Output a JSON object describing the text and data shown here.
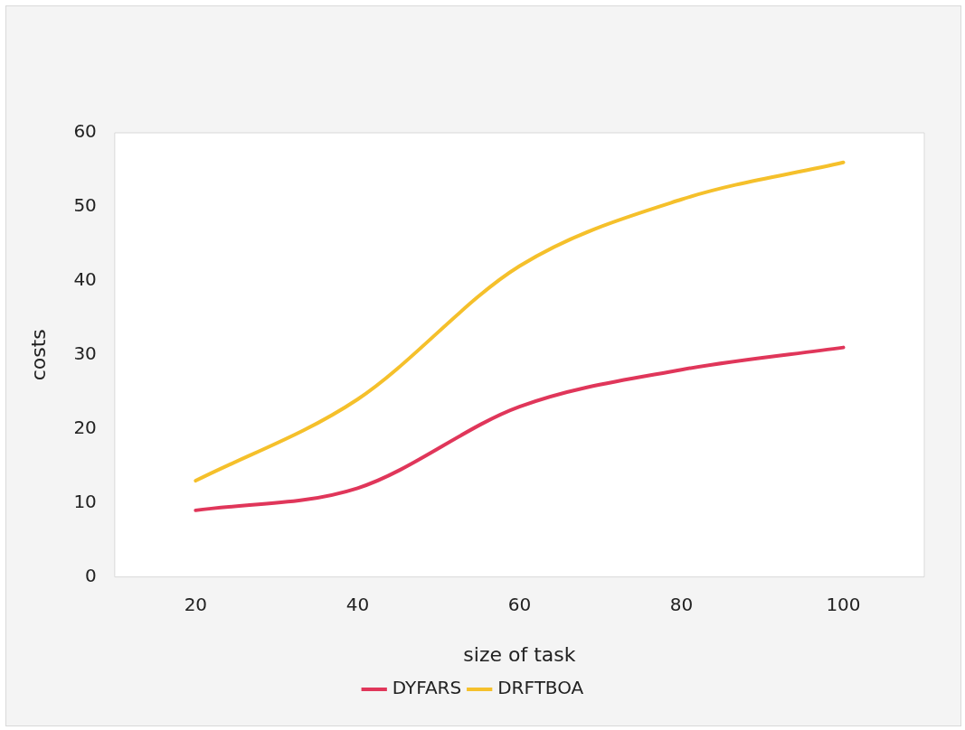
{
  "chart_data": {
    "type": "line",
    "xlabel": "size of task",
    "ylabel": "costs",
    "categories": [
      "20",
      "40",
      "60",
      "80",
      "100"
    ],
    "series": [
      {
        "name": "DYFARS",
        "color": "#e0365a",
        "values": [
          9,
          12,
          23,
          28,
          31
        ]
      },
      {
        "name": "DRFTBOA",
        "color": "#f5c02b",
        "values": [
          13,
          24,
          42,
          51,
          56
        ]
      }
    ],
    "ylim": [
      0,
      60
    ],
    "yticks": [
      0,
      10,
      20,
      30,
      40,
      50,
      60
    ],
    "grid": false,
    "legend": "bottom",
    "marker": "none",
    "line_style": "solid"
  }
}
